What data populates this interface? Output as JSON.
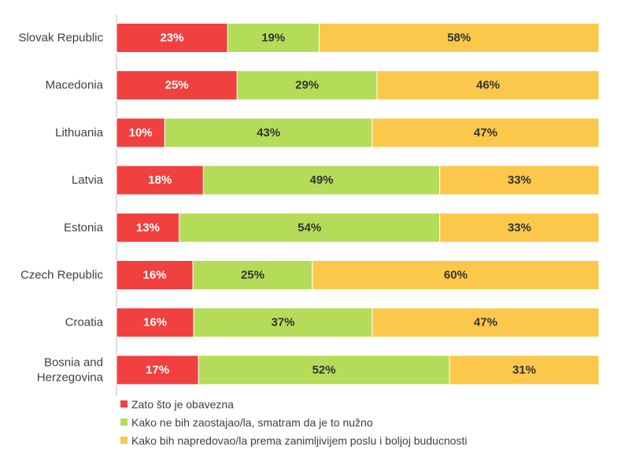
{
  "chart_data": {
    "type": "bar",
    "orientation": "horizontal",
    "stacked": true,
    "percent": true,
    "categories": [
      "Slovak Republic",
      "Macedonia",
      "Lithuania",
      "Latvia",
      "Estonia",
      "Czech Republic",
      "Croatia",
      "Bosnia and Herzegovina"
    ],
    "category_lines": [
      [
        "Slovak Republic"
      ],
      [
        "Macedonia"
      ],
      [
        "Lithuania"
      ],
      [
        "Latvia"
      ],
      [
        "Estonia"
      ],
      [
        "Czech Republic"
      ],
      [
        "Croatia"
      ],
      [
        "Bosnia and",
        "Herzegovina"
      ]
    ],
    "series": [
      {
        "name": "Zato što je obavezna",
        "color": "#f04040",
        "label_color": "#ffffff",
        "values": [
          23,
          25,
          10,
          18,
          13,
          16,
          16,
          17
        ]
      },
      {
        "name": "Kako ne bih zaostajao/la, smatram da je to nužno",
        "color": "#b5dc58",
        "label_color": "#333333",
        "values": [
          19,
          29,
          43,
          49,
          54,
          25,
          37,
          52
        ]
      },
      {
        "name": "Kako bih napredovao/la prema zanimljivijem poslu i boljoj buducnosti",
        "color": "#fbc84b",
        "label_color": "#333333",
        "values": [
          58,
          46,
          47,
          33,
          33,
          60,
          47,
          31
        ]
      }
    ],
    "value_suffix": "%",
    "title": "",
    "xlabel": "",
    "ylabel": "",
    "grid": false,
    "legend_position": "bottom-left"
  }
}
